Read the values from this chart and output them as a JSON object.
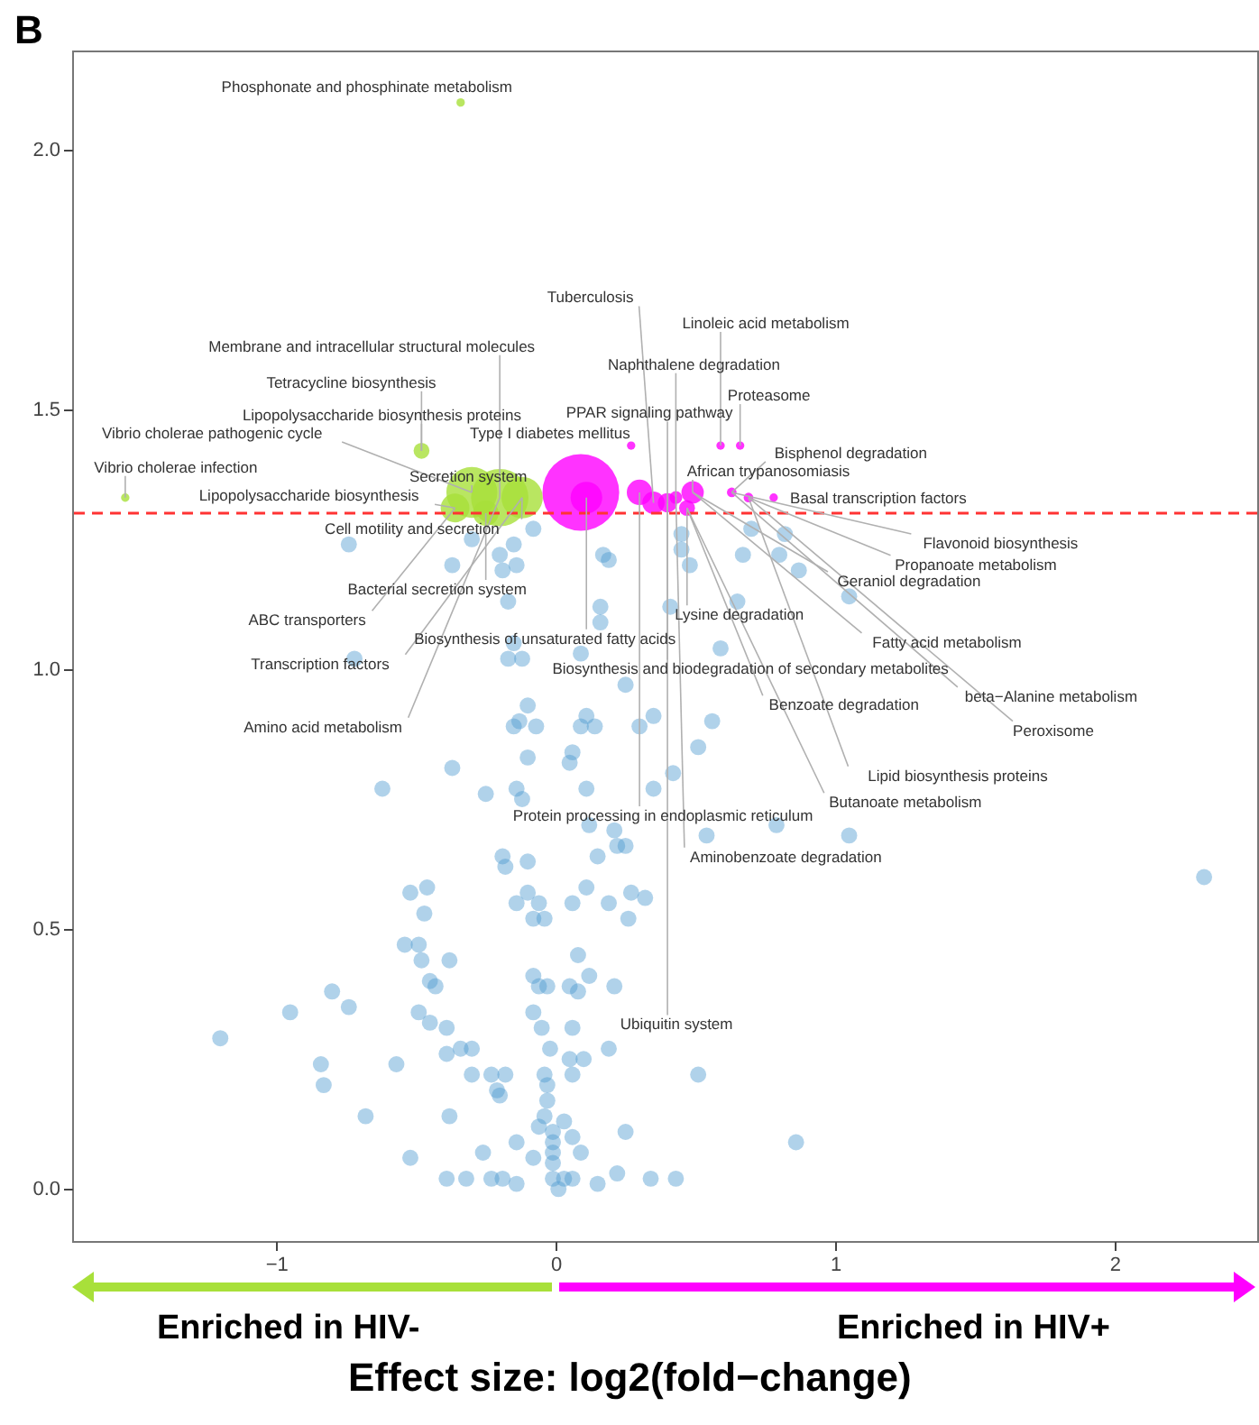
{
  "chart_data": {
    "type": "bubble",
    "title": "B",
    "xlabel": "Effect size: log2(fold−change)",
    "xlim": [
      -1.73,
      2.51
    ],
    "ylim": [
      -0.1,
      2.19
    ],
    "xticks": [
      {
        "value": -1,
        "label": "−1"
      },
      0,
      1,
      2
    ],
    "yticks": [
      {
        "value": 0,
        "label": "0.0"
      },
      {
        "value": 0.5,
        "label": "0.5"
      },
      {
        "value": 1,
        "label": "1.0"
      },
      {
        "value": 1.5,
        "label": "1.5"
      },
      {
        "value": 2,
        "label": "2.0"
      }
    ],
    "marker": "circle",
    "series": [
      {
        "type": "scatter",
        "color": "#4f9bd0",
        "x": [
          -0.74,
          -0.3,
          -0.15,
          -0.08,
          -0.37,
          -0.2,
          -0.14,
          -0.19,
          -0.17,
          0.17,
          0.16,
          0.16,
          0.7,
          0.82,
          0.67,
          0.8,
          0.87,
          1.05,
          0.19,
          0.45,
          0.45,
          0.48,
          0.65,
          0.41,
          -0.72,
          -0.17,
          -0.12,
          -0.15,
          0.09,
          0.25,
          -0.1,
          -0.13,
          -0.15,
          -0.07,
          0.11,
          0.09,
          0.14,
          0.3,
          0.35,
          -0.1,
          -0.37,
          0.06,
          0.05,
          -0.62,
          -0.25,
          -0.14,
          -0.12,
          0.11,
          0.35,
          0.12,
          0.21,
          0.25,
          0.15,
          -0.19,
          -0.18,
          -0.1,
          -0.52,
          -0.46,
          -0.47,
          -0.14,
          -0.1,
          -0.06,
          -0.08,
          -0.04,
          0.06,
          0.11,
          0.19,
          0.27,
          0.32,
          0.26,
          0.59,
          0.56,
          0.51,
          0.42,
          0.54,
          0.79,
          1.05,
          2.32,
          0.22,
          -0.54,
          -0.49,
          -0.48,
          -0.38,
          -0.45,
          -0.43,
          -0.08,
          -0.06,
          -0.03,
          0.08,
          0.05,
          0.08,
          0.12,
          0.21,
          -0.8,
          -0.95,
          -0.74,
          -0.49,
          -0.45,
          -0.39,
          -1.2,
          -0.34,
          -0.3,
          -0.39,
          -0.08,
          -0.05,
          0.06,
          -0.02,
          0.05,
          0.1,
          0.19,
          -0.84,
          -0.83,
          -0.57,
          -0.3,
          -0.23,
          -0.18,
          -0.21,
          -0.2,
          -0.04,
          -0.03,
          -0.03,
          0.06,
          0.51,
          -0.68,
          -0.38,
          -0.04,
          -0.06,
          -0.01,
          0.03,
          0.06,
          -0.01,
          0.09,
          -0.01,
          0.25,
          -0.14,
          -0.26,
          -0.52,
          -0.08,
          -0.01,
          0.86,
          -0.39,
          -0.32,
          -0.23,
          -0.19,
          -0.14,
          -0.01,
          0.03,
          0.01,
          0.06,
          0.15,
          0.22,
          0.34,
          0.43
        ],
        "values": [
          1.24,
          1.25,
          1.24,
          1.27,
          1.2,
          1.22,
          1.2,
          1.19,
          1.13,
          1.22,
          1.12,
          1.09,
          1.27,
          1.26,
          1.22,
          1.22,
          1.19,
          1.14,
          1.21,
          1.26,
          1.23,
          1.2,
          1.13,
          1.12,
          1.02,
          1.02,
          1.02,
          1.05,
          1.03,
          0.97,
          0.93,
          0.9,
          0.89,
          0.89,
          0.91,
          0.89,
          0.89,
          0.89,
          0.91,
          0.83,
          0.81,
          0.84,
          0.82,
          0.77,
          0.76,
          0.77,
          0.75,
          0.77,
          0.77,
          0.7,
          0.69,
          0.66,
          0.64,
          0.64,
          0.62,
          0.63,
          0.57,
          0.58,
          0.53,
          0.55,
          0.57,
          0.55,
          0.52,
          0.52,
          0.55,
          0.58,
          0.55,
          0.57,
          0.56,
          0.52,
          1.04,
          0.9,
          0.85,
          0.8,
          0.68,
          0.7,
          0.68,
          0.6,
          0.66,
          0.47,
          0.47,
          0.44,
          0.44,
          0.4,
          0.39,
          0.41,
          0.39,
          0.39,
          0.45,
          0.39,
          0.38,
          0.41,
          0.39,
          0.38,
          0.34,
          0.35,
          0.34,
          0.32,
          0.31,
          0.29,
          0.27,
          0.27,
          0.26,
          0.34,
          0.31,
          0.31,
          0.27,
          0.25,
          0.25,
          0.27,
          0.24,
          0.2,
          0.24,
          0.22,
          0.22,
          0.22,
          0.19,
          0.18,
          0.22,
          0.2,
          0.17,
          0.22,
          0.22,
          0.14,
          0.14,
          0.14,
          0.12,
          0.11,
          0.13,
          0.1,
          0.09,
          0.07,
          0.07,
          0.11,
          0.09,
          0.07,
          0.06,
          0.06,
          0.05,
          0.09,
          0.02,
          0.02,
          0.02,
          0.02,
          0.01,
          0.02,
          0.02,
          0.0,
          0.02,
          0.01,
          0.03,
          0.02,
          0.02
        ]
      },
      {
        "type": "bubble",
        "color": "#a8e03a",
        "x": [
          -0.3,
          -0.2,
          -0.12,
          -0.36,
          -0.48,
          -1.54,
          -0.34,
          -0.25
        ],
        "values": [
          1.34,
          1.33,
          1.33,
          1.31,
          1.42,
          1.33,
          2.09,
          1.3
        ],
        "sizes": [
          0.44,
          0.56,
          0.29,
          0.14,
          0.043,
          0.012,
          0.012,
          0.11
        ]
      },
      {
        "type": "bubble",
        "color": "#ff00ff",
        "x": [
          0.09,
          0.11,
          0.3,
          0.35,
          0.43,
          0.49,
          0.47,
          0.63,
          0.69,
          0.78,
          0.27,
          0.59,
          0.66,
          0.4
        ],
        "values": [
          1.34,
          1.33,
          1.34,
          1.32,
          1.33,
          1.34,
          1.31,
          1.34,
          1.33,
          1.33,
          1.43,
          1.43,
          1.43,
          1.32
        ],
        "sizes": [
          1,
          0.17,
          0.11,
          0.085,
          0.028,
          0.085,
          0.043,
          0.016,
          0.016,
          0.012,
          0.012,
          0.012,
          0.012,
          0.0625
        ]
      }
    ],
    "ref_lines": [
      {
        "axis": "y",
        "value": 1.3,
        "color": "#ff3333",
        "line_style": "dashed"
      }
    ],
    "annotations": [
      {
        "text": "Phosphonate and phosphinate metabolism",
        "x": -0.34,
        "y": 2.09
      },
      {
        "text": "Tuberculosis",
        "x": 0.35,
        "y": 1.32
      },
      {
        "text": "Linoleic acid metabolism",
        "x": 0.59,
        "y": 1.43
      },
      {
        "text": "Naphthalene degradation",
        "x": 0.43,
        "y": 1.33
      },
      {
        "text": "Proteasome",
        "x": 0.66,
        "y": 1.43
      },
      {
        "text": "PPAR signaling pathway",
        "x": 0.4,
        "y": 1.32
      },
      {
        "text": "Type I diabetes mellitus",
        "x": 0.27,
        "y": 1.43
      },
      {
        "text": "Bisphenol degradation",
        "x": 0.63,
        "y": 1.34
      },
      {
        "text": "African trypanosomiasis",
        "x": 0.49,
        "y": 1.34
      },
      {
        "text": "Basal transcription factors",
        "x": 0.78,
        "y": 1.33
      },
      {
        "text": "Secretion system",
        "x": -0.3,
        "y": 1.34
      },
      {
        "text": "Lipopolysaccharide biosynthesis",
        "x": -0.36,
        "y": 1.31
      },
      {
        "text": "Membrane and intracellular structural molecules",
        "x": -0.2,
        "y": 1.33
      },
      {
        "text": "Tetracycline biosynthesis",
        "x": -0.48,
        "y": 1.42
      },
      {
        "text": "Lipopolysaccharide biosynthesis proteins",
        "x": -0.48,
        "y": 1.42
      },
      {
        "text": "Vibrio cholerae pathogenic cycle",
        "x": -0.3,
        "y": 1.34
      },
      {
        "text": "Vibrio cholerae infection",
        "x": -1.54,
        "y": 1.33
      },
      {
        "text": "Cell motility and secretion",
        "x": -0.12,
        "y": 1.33
      },
      {
        "text": "Bacterial secretion system",
        "x": -0.25,
        "y": 1.3
      },
      {
        "text": "ABC transporters",
        "x": -0.36,
        "y": 1.31
      },
      {
        "text": "Transcription factors",
        "x": -0.12,
        "y": 1.33
      },
      {
        "text": "Amino acid metabolism",
        "x": -0.2,
        "y": 1.33
      },
      {
        "text": "Biosynthesis of unsaturated fatty acids",
        "x": 0.11,
        "y": 1.33
      },
      {
        "text": "Biosynthesis and biodegradation of secondary metabolites",
        "x": 0.4,
        "y": 1.32
      },
      {
        "text": "Protein processing in endoplasmic reticulum",
        "x": 0.3,
        "y": 1.34
      },
      {
        "text": "Aminobenzoate degradation",
        "x": 0.43,
        "y": 1.33
      },
      {
        "text": "Ubiquitin system",
        "x": 0.4,
        "y": 1.32
      },
      {
        "text": "Lysine degradation",
        "x": 0.47,
        "y": 1.31
      },
      {
        "text": "Fatty acid metabolism",
        "x": 0.49,
        "y": 1.34
      },
      {
        "text": "beta−Alanine metabolism",
        "x": 0.63,
        "y": 1.34
      },
      {
        "text": "Peroxisome",
        "x": 0.69,
        "y": 1.33
      },
      {
        "text": "Benzoate degradation",
        "x": 0.47,
        "y": 1.31
      },
      {
        "text": "Lipid biosynthesis proteins",
        "x": 0.69,
        "y": 1.33
      },
      {
        "text": "Butanoate metabolism",
        "x": 0.47,
        "y": 1.31
      },
      {
        "text": "Flavonoid biosynthesis",
        "x": 0.63,
        "y": 1.34
      },
      {
        "text": "Propanoate metabolism",
        "x": 0.69,
        "y": 1.33
      },
      {
        "text": "Geraniol degradation",
        "x": 0.49,
        "y": 1.34
      },
      "Enriched in HIV-",
      "Enriched in HIV+"
    ]
  }
}
